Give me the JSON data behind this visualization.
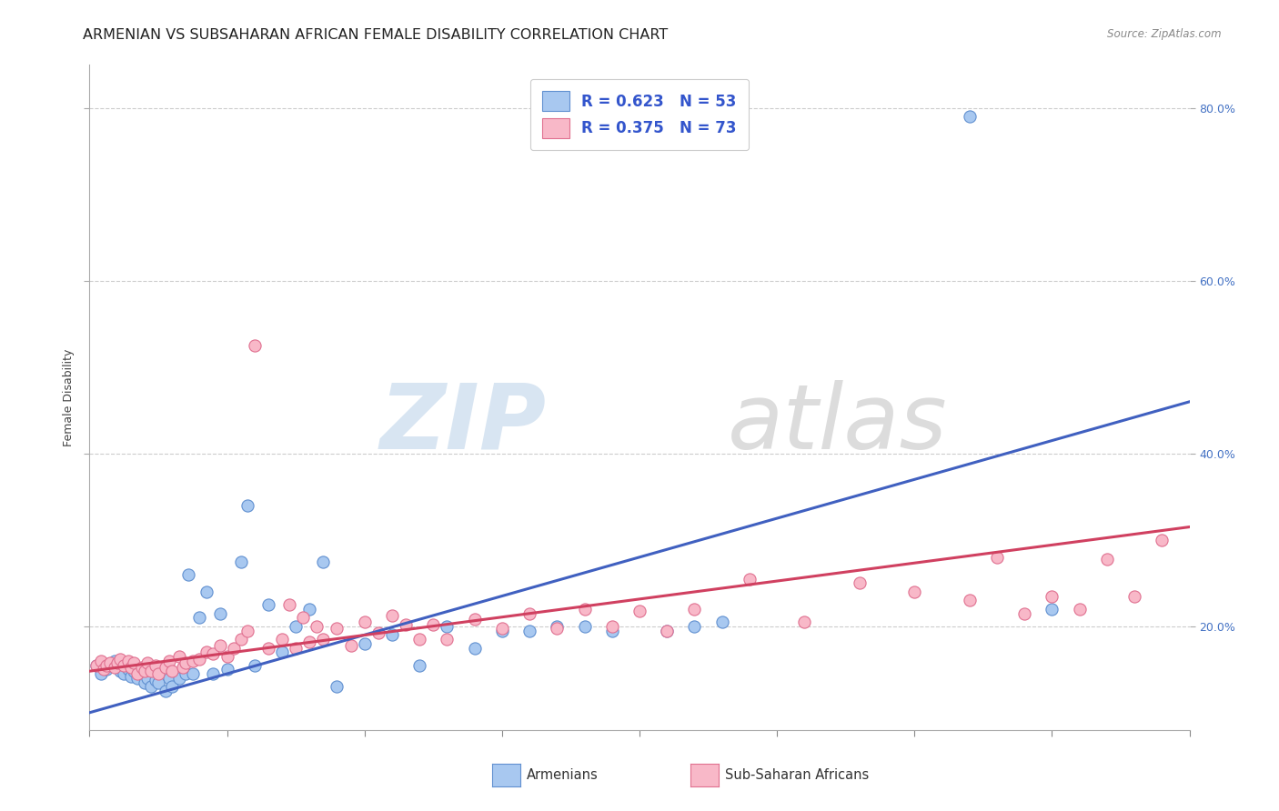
{
  "title": "ARMENIAN VS SUBSAHARAN AFRICAN FEMALE DISABILITY CORRELATION CHART",
  "source": "Source: ZipAtlas.com",
  "ylabel": "Female Disability",
  "xlim": [
    0.0,
    0.8
  ],
  "ylim": [
    0.08,
    0.85
  ],
  "yticks": [
    0.2,
    0.4,
    0.6,
    0.8
  ],
  "ytick_labels": [
    "20.0%",
    "40.0%",
    "60.0%",
    "80.0%"
  ],
  "xticks": [
    0.0,
    0.1,
    0.2,
    0.3,
    0.4,
    0.5,
    0.6,
    0.7,
    0.8
  ],
  "color_armenian_fill": "#A8C8F0",
  "color_armenian_edge": "#6090D0",
  "color_subsaharan_fill": "#F8B8C8",
  "color_subsaharan_edge": "#E07090",
  "color_line_armenian": "#4060C0",
  "color_line_subsaharan": "#D04060",
  "background_color": "#FFFFFF",
  "grid_color": "#CCCCCC",
  "armenian_x": [
    0.005,
    0.008,
    0.012,
    0.015,
    0.018,
    0.022,
    0.025,
    0.028,
    0.03,
    0.032,
    0.035,
    0.038,
    0.04,
    0.042,
    0.045,
    0.048,
    0.05,
    0.055,
    0.058,
    0.06,
    0.065,
    0.07,
    0.072,
    0.075,
    0.08,
    0.085,
    0.09,
    0.095,
    0.1,
    0.11,
    0.115,
    0.12,
    0.13,
    0.14,
    0.15,
    0.16,
    0.17,
    0.18,
    0.2,
    0.22,
    0.24,
    0.26,
    0.28,
    0.3,
    0.32,
    0.34,
    0.36,
    0.38,
    0.42,
    0.44,
    0.46,
    0.64,
    0.7
  ],
  "armenian_y": [
    0.155,
    0.145,
    0.15,
    0.155,
    0.16,
    0.148,
    0.145,
    0.15,
    0.142,
    0.148,
    0.14,
    0.145,
    0.135,
    0.14,
    0.13,
    0.138,
    0.135,
    0.125,
    0.14,
    0.13,
    0.14,
    0.145,
    0.26,
    0.145,
    0.21,
    0.24,
    0.145,
    0.215,
    0.15,
    0.275,
    0.34,
    0.155,
    0.225,
    0.17,
    0.2,
    0.22,
    0.275,
    0.13,
    0.18,
    0.19,
    0.155,
    0.2,
    0.175,
    0.195,
    0.195,
    0.2,
    0.2,
    0.195,
    0.195,
    0.2,
    0.205,
    0.79,
    0.22
  ],
  "subsaharan_x": [
    0.005,
    0.008,
    0.01,
    0.012,
    0.015,
    0.018,
    0.02,
    0.022,
    0.025,
    0.028,
    0.03,
    0.032,
    0.035,
    0.038,
    0.04,
    0.042,
    0.045,
    0.048,
    0.05,
    0.055,
    0.058,
    0.06,
    0.065,
    0.068,
    0.07,
    0.075,
    0.08,
    0.085,
    0.09,
    0.095,
    0.1,
    0.105,
    0.11,
    0.115,
    0.12,
    0.13,
    0.14,
    0.145,
    0.15,
    0.155,
    0.16,
    0.165,
    0.17,
    0.18,
    0.19,
    0.2,
    0.21,
    0.22,
    0.23,
    0.24,
    0.25,
    0.26,
    0.28,
    0.3,
    0.32,
    0.34,
    0.36,
    0.38,
    0.4,
    0.42,
    0.44,
    0.48,
    0.52,
    0.56,
    0.6,
    0.64,
    0.66,
    0.68,
    0.7,
    0.72,
    0.74,
    0.76,
    0.78
  ],
  "subsaharan_y": [
    0.155,
    0.16,
    0.15,
    0.155,
    0.158,
    0.152,
    0.158,
    0.162,
    0.155,
    0.16,
    0.152,
    0.158,
    0.145,
    0.152,
    0.148,
    0.158,
    0.148,
    0.155,
    0.145,
    0.152,
    0.16,
    0.148,
    0.165,
    0.152,
    0.158,
    0.16,
    0.162,
    0.17,
    0.168,
    0.178,
    0.165,
    0.175,
    0.185,
    0.195,
    0.525,
    0.175,
    0.185,
    0.225,
    0.175,
    0.21,
    0.182,
    0.2,
    0.185,
    0.198,
    0.178,
    0.205,
    0.192,
    0.212,
    0.202,
    0.185,
    0.202,
    0.185,
    0.208,
    0.198,
    0.215,
    0.198,
    0.22,
    0.2,
    0.218,
    0.195,
    0.22,
    0.255,
    0.205,
    0.25,
    0.24,
    0.23,
    0.28,
    0.215,
    0.235,
    0.22,
    0.278,
    0.235,
    0.3
  ],
  "armenian_trendline_x": [
    0.0,
    0.8
  ],
  "armenian_trendline_y": [
    0.1,
    0.46
  ],
  "subsaharan_trendline_x": [
    0.0,
    0.8
  ],
  "subsaharan_trendline_y": [
    0.148,
    0.315
  ],
  "watermark_zip": "ZIP",
  "watermark_atlas": "atlas",
  "title_fontsize": 11.5,
  "axis_label_fontsize": 9,
  "tick_fontsize": 9,
  "legend_fontsize": 12
}
